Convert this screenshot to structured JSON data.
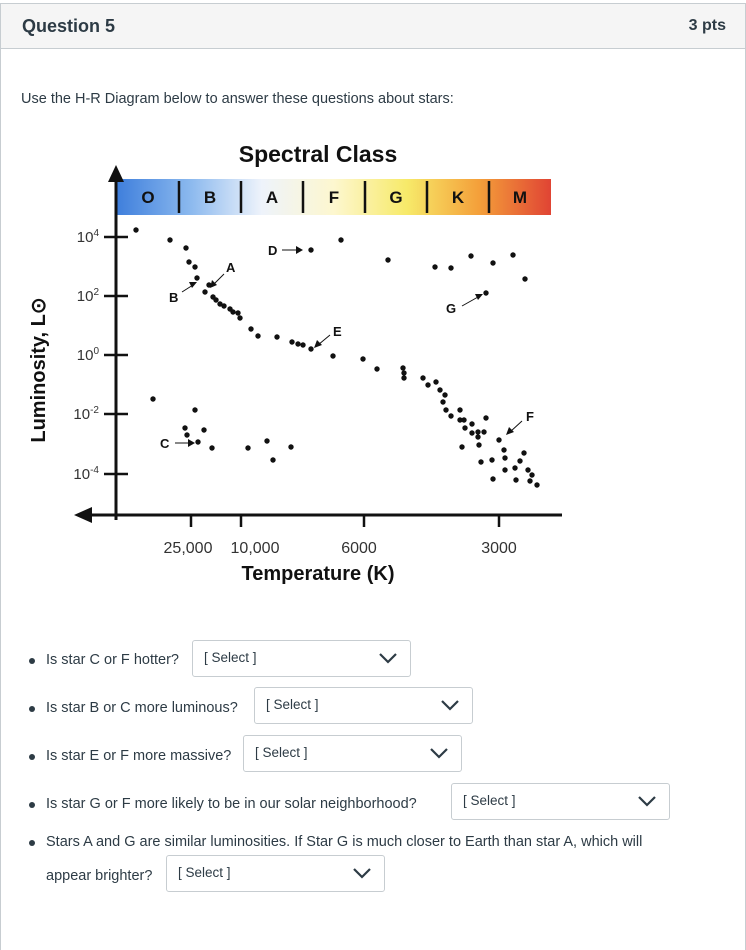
{
  "header": {
    "title": "Question 5",
    "points": "3 pts"
  },
  "intro": "Use the H-R Diagram below to answer these questions about stars:",
  "diagram": {
    "title": "Spectral Class",
    "classes": [
      {
        "label": "O",
        "color": "#3f7fdc"
      },
      {
        "label": "B",
        "color": "#8ab8ee"
      },
      {
        "label": "A",
        "color": "#eef3fb"
      },
      {
        "label": "F",
        "color": "#fdf7cf"
      },
      {
        "label": "G",
        "color": "#f7ea6a"
      },
      {
        "label": "K",
        "color": "#f4a03a"
      },
      {
        "label": "M",
        "color": "#e04434"
      }
    ],
    "y_axis_label": "Luminosity, L⊙",
    "y_ticks": [
      {
        "base": "10",
        "exp": "4"
      },
      {
        "base": "10",
        "exp": "2"
      },
      {
        "base": "10",
        "exp": "0"
      },
      {
        "base": "10",
        "exp": "-2"
      },
      {
        "base": "10",
        "exp": "-4"
      }
    ],
    "x_axis_label": "Temperature (K)",
    "x_ticks": [
      "25,000",
      "10,000",
      "6000",
      "3000"
    ],
    "star_labels": [
      "A",
      "B",
      "C",
      "D",
      "E",
      "F",
      "G"
    ]
  },
  "questions": [
    {
      "text": "Is star C or F hotter?",
      "placeholder": "[ Select ]"
    },
    {
      "text": "Is star B or C more luminous?",
      "placeholder": "[ Select ]"
    },
    {
      "text": "Is star E or F more massive?",
      "placeholder": "[ Select ]"
    },
    {
      "text": "Is star G or F more likely to be in our solar neighborhood?",
      "placeholder": "[ Select ]"
    },
    {
      "text_line1": "Stars A and G are similar luminosities. If Star G is much closer to Earth than star A, which will",
      "text_line2": "appear brighter?",
      "placeholder": "[ Select ]"
    }
  ]
}
